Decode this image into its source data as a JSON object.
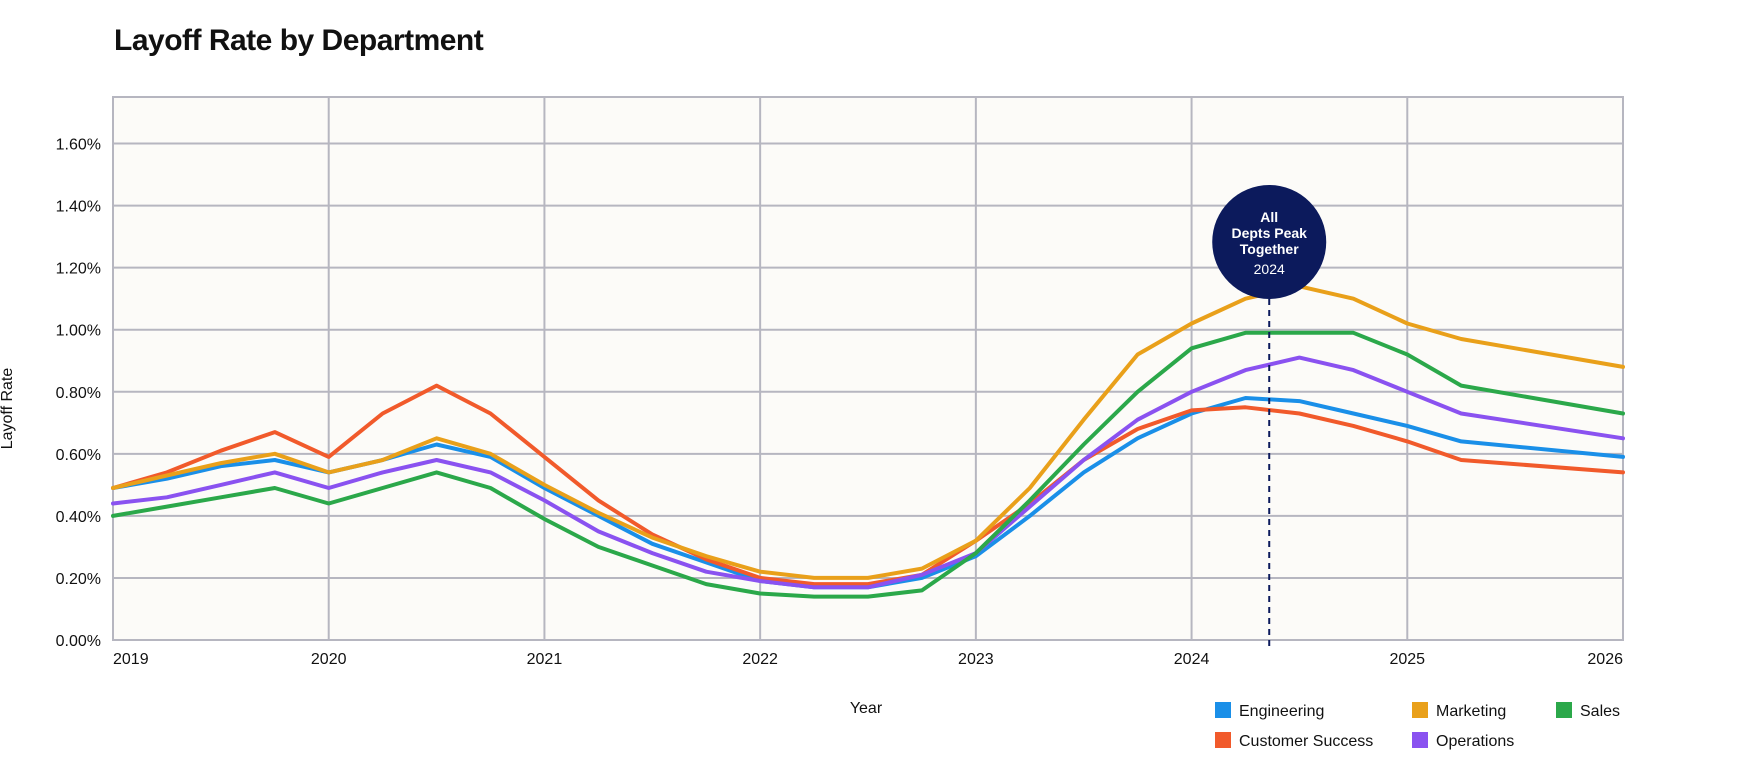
{
  "chart_data": {
    "type": "line",
    "title": "Layoff Rate by Department",
    "xlabel": "Year",
    "ylabel": "Layoff Rate",
    "xlim": [
      2019,
      2026
    ],
    "ylim": [
      0,
      1.75
    ],
    "x_ticks": [
      "2019",
      "2020",
      "2021",
      "2022",
      "2023",
      "2024",
      "2025",
      "2026"
    ],
    "y_ticks": [
      "0.00%",
      "0.20%",
      "0.40%",
      "0.60%",
      "0.80%",
      "1.00%",
      "1.20%",
      "1.40%",
      "1.60%"
    ],
    "grid": true,
    "legend_position": "bottom-right",
    "x": [
      2019,
      2019.25,
      2019.5,
      2019.75,
      2020,
      2020.25,
      2020.5,
      2020.75,
      2021,
      2021.25,
      2021.5,
      2021.75,
      2022,
      2022.25,
      2022.5,
      2022.75,
      2023,
      2023.25,
      2023.5,
      2023.75,
      2024,
      2024.25,
      2024.5,
      2024.75,
      2025,
      2025.25,
      2026
    ],
    "series": [
      {
        "name": "Engineering",
        "color": "#1a8fe8",
        "values": [
          0.49,
          0.52,
          0.56,
          0.58,
          0.54,
          0.58,
          0.63,
          0.59,
          0.49,
          0.4,
          0.31,
          0.25,
          0.19,
          0.17,
          0.17,
          0.2,
          0.27,
          0.4,
          0.54,
          0.65,
          0.73,
          0.78,
          0.77,
          0.73,
          0.69,
          0.64,
          0.59
        ]
      },
      {
        "name": "Customer Success",
        "color": "#f15a2b",
        "values": [
          0.49,
          0.54,
          0.61,
          0.67,
          0.59,
          0.73,
          0.82,
          0.73,
          0.59,
          0.45,
          0.34,
          0.26,
          0.2,
          0.18,
          0.18,
          0.21,
          0.32,
          0.44,
          0.58,
          0.68,
          0.74,
          0.75,
          0.73,
          0.69,
          0.64,
          0.58,
          0.54
        ]
      },
      {
        "name": "Marketing",
        "color": "#e9a01a",
        "values": [
          0.49,
          0.53,
          0.57,
          0.6,
          0.54,
          0.58,
          0.65,
          0.6,
          0.5,
          0.41,
          0.33,
          0.27,
          0.22,
          0.2,
          0.2,
          0.23,
          0.32,
          0.49,
          0.71,
          0.92,
          1.02,
          1.1,
          1.14,
          1.1,
          1.02,
          0.97,
          0.88
        ]
      },
      {
        "name": "Operations",
        "color": "#8a52f0",
        "values": [
          0.44,
          0.46,
          0.5,
          0.54,
          0.49,
          0.54,
          0.58,
          0.54,
          0.45,
          0.35,
          0.28,
          0.22,
          0.19,
          0.17,
          0.17,
          0.21,
          0.28,
          0.43,
          0.58,
          0.71,
          0.8,
          0.87,
          0.91,
          0.87,
          0.8,
          0.73,
          0.65
        ]
      },
      {
        "name": "Sales",
        "color": "#2ba84a",
        "values": [
          0.4,
          0.43,
          0.46,
          0.49,
          0.44,
          0.49,
          0.54,
          0.49,
          0.39,
          0.3,
          0.24,
          0.18,
          0.15,
          0.14,
          0.14,
          0.16,
          0.28,
          0.45,
          0.63,
          0.8,
          0.94,
          0.99,
          0.99,
          0.99,
          0.92,
          0.82,
          0.73
        ]
      }
    ],
    "annotation": {
      "x": 2024.36,
      "title_lines": [
        "All",
        "Depts Peak",
        "Together"
      ],
      "subtitle": "2024",
      "color": "#0c1a5c"
    }
  },
  "colors": {
    "plot_background": "#fcfbf8",
    "grid": "#b6b6c0"
  }
}
